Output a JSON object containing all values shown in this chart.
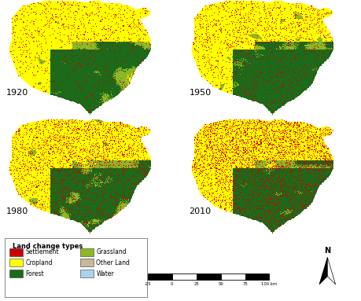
{
  "years": [
    "1920",
    "1950",
    "1980",
    "2010"
  ],
  "legend_items_left": [
    {
      "label": "Settlement",
      "color": "#cc0000"
    },
    {
      "label": "Cropland",
      "color": "#ffff00"
    },
    {
      "label": "Forest",
      "color": "#1a6b1a"
    }
  ],
  "legend_items_right": [
    {
      "label": "Grassland",
      "color": "#8db826"
    },
    {
      "label": "Other Land",
      "color": "#c8b89a"
    },
    {
      "label": "Water",
      "color": "#aad4ea"
    }
  ],
  "legend_title": "Land change types",
  "background_color": "#ffffff",
  "scale_labels": [
    "-25",
    "0",
    "25",
    "50",
    "75",
    "100 km"
  ],
  "year_label_fontsize": 9,
  "legend_fontsize": 5.5,
  "legend_title_fontsize": 6.0
}
